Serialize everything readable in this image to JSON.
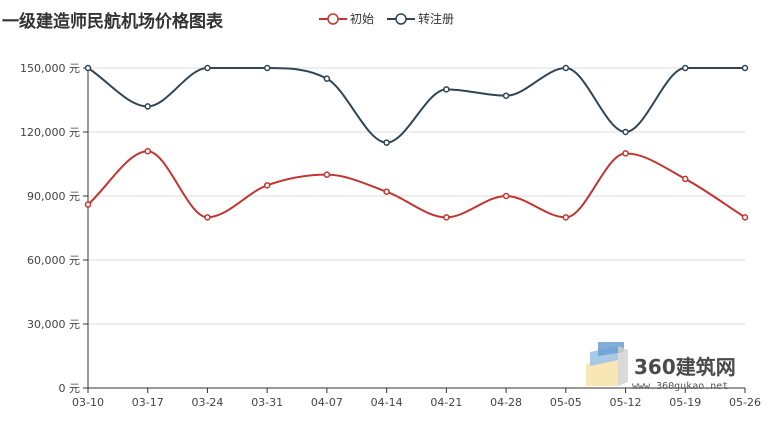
{
  "chart_data": {
    "type": "line",
    "title": "一级建造师民航机场价格图表",
    "categories": [
      "03-10",
      "03-17",
      "03-24",
      "03-31",
      "04-07",
      "04-14",
      "04-21",
      "04-28",
      "05-05",
      "05-12",
      "05-19",
      "05-26"
    ],
    "series": [
      {
        "name": "初始",
        "color": "#c23531",
        "values": [
          86000,
          111000,
          80000,
          95000,
          100000,
          92000,
          80000,
          90000,
          80000,
          110000,
          98000,
          80000
        ]
      },
      {
        "name": "转注册",
        "color": "#2f4554",
        "values": [
          150000,
          132000,
          150000,
          150000,
          145000,
          115000,
          140000,
          137000,
          150000,
          120000,
          150000,
          150000
        ]
      }
    ],
    "ylim": [
      0,
      150000
    ],
    "yticks": [
      0,
      30000,
      60000,
      90000,
      120000,
      150000
    ],
    "ytick_labels": [
      "0 元",
      "30,000 元",
      "60,000 元",
      "90,000 元",
      "120,000 元",
      "150,000 元"
    ],
    "grid": true,
    "legend_position": "top-center",
    "smooth": true
  },
  "watermark": {
    "main_text": "360建筑网",
    "sub_text": "www.360gukao.net"
  }
}
